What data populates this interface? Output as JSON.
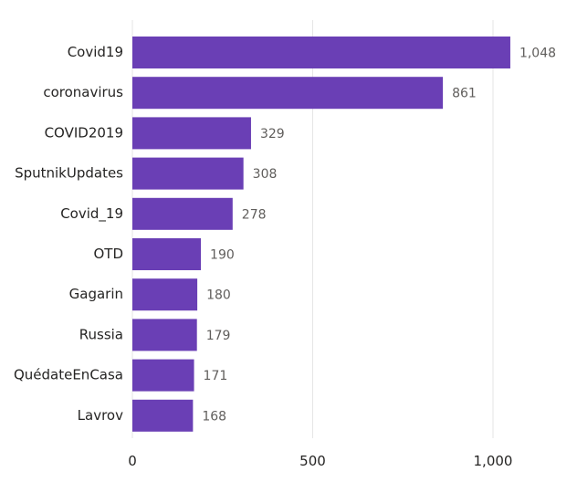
{
  "chart_data": {
    "type": "bar",
    "orientation": "horizontal",
    "categories": [
      "Covid19",
      "coronavirus",
      "COVID2019",
      "SputnikUpdates",
      "Covid_19",
      "OTD",
      "Gagarin",
      "Russia",
      "QuédateEnCasa",
      "Lavrov"
    ],
    "values": [
      1048,
      861,
      329,
      308,
      278,
      190,
      180,
      179,
      171,
      168
    ],
    "value_labels": [
      "1,048",
      "861",
      "329",
      "308",
      "278",
      "190",
      "180",
      "179",
      "171",
      "168"
    ],
    "xlim": [
      0,
      1200
    ],
    "x_ticks": [
      0,
      500,
      1000
    ],
    "x_tick_labels": [
      "0",
      "500",
      "1,000"
    ],
    "grid": true,
    "bar_color": "#6a3fb5"
  }
}
